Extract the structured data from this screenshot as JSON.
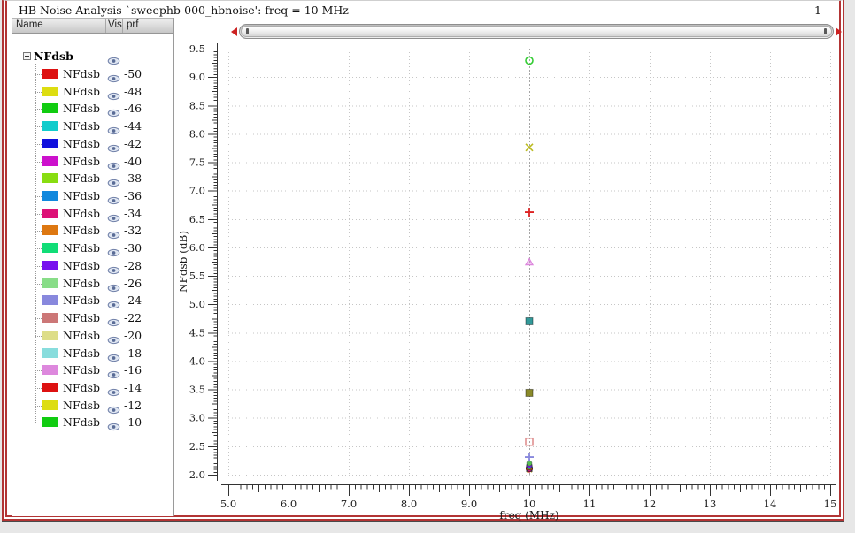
{
  "window": {
    "title": "HB Noise Analysis `sweephb-000_hbnoise': freq = 10 MHz",
    "page_number": "1"
  },
  "tree": {
    "columns": [
      "Name",
      "Vis",
      "prf"
    ],
    "parent": {
      "label": "NFdsb"
    },
    "traces": [
      {
        "label": "NFdsb",
        "prf": "-50",
        "color": "#dd1111"
      },
      {
        "label": "NFdsb",
        "prf": "-48",
        "color": "#dddd11"
      },
      {
        "label": "NFdsb",
        "prf": "-46",
        "color": "#11cc11"
      },
      {
        "label": "NFdsb",
        "prf": "-44",
        "color": "#11cccc"
      },
      {
        "label": "NFdsb",
        "prf": "-42",
        "color": "#1111dd"
      },
      {
        "label": "NFdsb",
        "prf": "-40",
        "color": "#cc11cc"
      },
      {
        "label": "NFdsb",
        "prf": "-38",
        "color": "#88dd11"
      },
      {
        "label": "NFdsb",
        "prf": "-36",
        "color": "#1188dd"
      },
      {
        "label": "NFdsb",
        "prf": "-34",
        "color": "#dd1177"
      },
      {
        "label": "NFdsb",
        "prf": "-32",
        "color": "#dd7711"
      },
      {
        "label": "NFdsb",
        "prf": "-30",
        "color": "#11dd77"
      },
      {
        "label": "NFdsb",
        "prf": "-28",
        "color": "#7711ee"
      },
      {
        "label": "NFdsb",
        "prf": "-26",
        "color": "#88dd88"
      },
      {
        "label": "NFdsb",
        "prf": "-24",
        "color": "#8888dd"
      },
      {
        "label": "NFdsb",
        "prf": "-22",
        "color": "#cc7777"
      },
      {
        "label": "NFdsb",
        "prf": "-20",
        "color": "#dddd88"
      },
      {
        "label": "NFdsb",
        "prf": "-18",
        "color": "#88dddd"
      },
      {
        "label": "NFdsb",
        "prf": "-16",
        "color": "#dd88dd"
      },
      {
        "label": "NFdsb",
        "prf": "-14",
        "color": "#dd1111"
      },
      {
        "label": "NFdsb",
        "prf": "-12",
        "color": "#dddd11"
      },
      {
        "label": "NFdsb",
        "prf": "-10",
        "color": "#11cc11"
      }
    ]
  },
  "chart_data": {
    "type": "scatter",
    "xlabel": "freq (MHz)",
    "ylabel": "NFdsb (dB)",
    "xlim": [
      5,
      15
    ],
    "ylim": [
      2.0,
      9.5
    ],
    "x_ticks": [
      "5.0",
      "6.0",
      "7.0",
      "8.0",
      "9.0",
      "10",
      "11",
      "12",
      "13",
      "14",
      "15"
    ],
    "y_ticks": [
      "2.0",
      "2.5",
      "3.0",
      "3.5",
      "4.0",
      "4.5",
      "5.0",
      "5.5",
      "6.0",
      "6.5",
      "7.0",
      "7.5",
      "8.0",
      "8.5",
      "9.0",
      "9.5"
    ],
    "grid": "dotted",
    "legend_position": "left-panel",
    "points": [
      {
        "prf": -50,
        "x": 10,
        "y": 2.1,
        "marker": "plus",
        "color": "#dd2222",
        "size": 3
      },
      {
        "prf": -48,
        "x": 10,
        "y": 2.09,
        "marker": "x",
        "color": "#bbbb22",
        "size": 3
      },
      {
        "prf": -46,
        "x": 10,
        "y": 2.13,
        "marker": "circle-filled",
        "color": "#22cc22",
        "size": 3
      },
      {
        "prf": -44,
        "x": 10,
        "y": 2.11,
        "marker": "square-filled",
        "color": "#22cccc",
        "size": 3
      },
      {
        "prf": -42,
        "x": 10,
        "y": 2.12,
        "marker": "plus",
        "color": "#2222cc",
        "size": 3
      },
      {
        "prf": -40,
        "x": 10,
        "y": 2.1,
        "marker": "square-filled",
        "color": "#cc22cc",
        "size": 3
      },
      {
        "prf": -38,
        "x": 10,
        "y": 2.11,
        "marker": "circle-filled",
        "color": "#88cc22",
        "size": 3
      },
      {
        "prf": -36,
        "x": 10,
        "y": 2.11,
        "marker": "square-filled",
        "color": "#2288cc",
        "size": 3
      },
      {
        "prf": -34,
        "x": 10,
        "y": 2.1,
        "marker": "circle-filled",
        "color": "#cc2277",
        "size": 3
      },
      {
        "prf": -32,
        "x": 10,
        "y": 2.13,
        "marker": "square-filled",
        "color": "#dd7711",
        "size": 3
      },
      {
        "prf": -30,
        "x": 10,
        "y": 2.14,
        "marker": "circle-filled",
        "color": "#22cc77",
        "size": 3
      },
      {
        "prf": -28,
        "x": 10,
        "y": 2.16,
        "marker": "circle-filled",
        "color": "#7722dd",
        "size": 3
      },
      {
        "prf": -26,
        "x": 10,
        "y": 2.2,
        "marker": "circle-filled",
        "color": "#55bb55",
        "size": 3
      },
      {
        "prf": -24,
        "x": 10,
        "y": 2.31,
        "marker": "plus",
        "color": "#8888dd",
        "size": 4
      },
      {
        "prf": -22,
        "x": 10,
        "y": 2.58,
        "marker": "square-open",
        "color": "#dd8888",
        "size": 4
      },
      {
        "prf": -20,
        "x": 10,
        "y": 3.44,
        "marker": "square-filled",
        "color": "#8a8a2a",
        "size": 4
      },
      {
        "prf": -18,
        "x": 10,
        "y": 4.7,
        "marker": "square-filled",
        "color": "#339999",
        "size": 4
      },
      {
        "prf": -16,
        "x": 10,
        "y": 5.74,
        "marker": "triangle-open",
        "color": "#dd88dd",
        "size": 4
      },
      {
        "prf": -14,
        "x": 10,
        "y": 6.62,
        "marker": "plus",
        "color": "#dd2222",
        "size": 4
      },
      {
        "prf": -12,
        "x": 10,
        "y": 7.76,
        "marker": "x",
        "color": "#bbbb22",
        "size": 4
      },
      {
        "prf": -10,
        "x": 10,
        "y": 9.29,
        "marker": "circle-open",
        "color": "#33cc33",
        "size": 4
      }
    ]
  }
}
